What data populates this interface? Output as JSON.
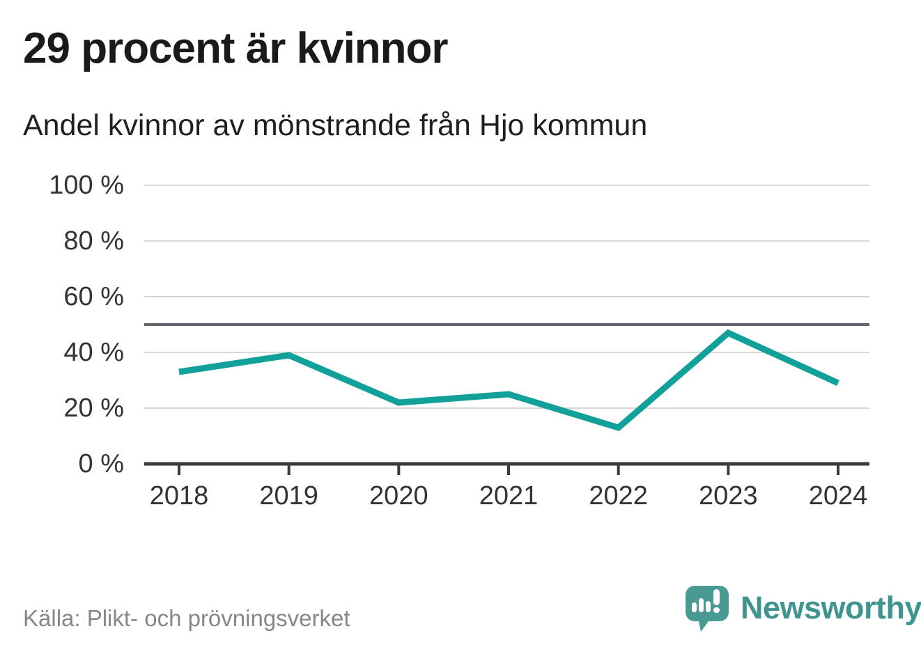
{
  "chart_data": {
    "type": "line",
    "title": "29 procent är kvinnor",
    "subtitle": "Andel kvinnor av mönstrande från Hjo kommun",
    "categories": [
      "2018",
      "2019",
      "2020",
      "2021",
      "2022",
      "2023",
      "2024"
    ],
    "values": [
      33,
      39,
      22,
      25,
      13,
      47,
      29
    ],
    "unit": "%",
    "xlabel": "",
    "ylabel": "",
    "ylim": [
      0,
      100
    ],
    "y_ticks": [
      100,
      80,
      60,
      40,
      20,
      0
    ],
    "y_tick_labels": [
      "100 %",
      "80 %",
      "60 %",
      "40 %",
      "20 %",
      "0 %"
    ],
    "reference_line": 50,
    "grid": true,
    "legend": "none",
    "colors": {
      "line": "#12a19a",
      "gridline": "#d8d8d8",
      "axis": "#3a3a3a",
      "reference_line": "#63636b",
      "tick_label": "#333333"
    }
  },
  "footer": {
    "source": "Källa: Plikt- och prövningsverket",
    "brand": "Newsworthy",
    "brand_color": "#3f948e",
    "logo_icon": "newsworthy-speech-bubble-chart-icon"
  }
}
